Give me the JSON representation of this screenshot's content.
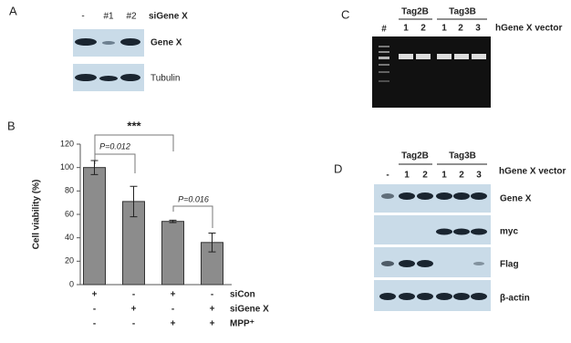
{
  "panels": {
    "A": {
      "label": "A",
      "lanes": [
        "-",
        "#1",
        "#2"
      ],
      "treatment": "siGene X",
      "rows": [
        "Gene X",
        "Tubulin"
      ]
    },
    "C": {
      "label": "C",
      "groups": [
        "Tag2B",
        "Tag3B"
      ],
      "marker": "#",
      "lanes": [
        "1",
        "2",
        "1",
        "2",
        "3"
      ],
      "vector": "hGene X vector"
    },
    "D": {
      "label": "D",
      "groups": [
        "Tag2B",
        "Tag3B"
      ],
      "lanes": [
        "-",
        "1",
        "2",
        "1",
        "2",
        "3"
      ],
      "vector": "hGene X vector",
      "rows": [
        "Gene X",
        "myc",
        "Flag",
        "β-actin"
      ]
    }
  },
  "chart_data": {
    "type": "bar",
    "panel_label": "B",
    "y_label": "Cell viability (%)",
    "categories": [
      null,
      null,
      null,
      null
    ],
    "values": [
      100,
      71,
      54,
      36
    ],
    "errors": [
      6,
      13,
      1,
      8
    ],
    "color": "#8c8c8c",
    "ylim": [
      0,
      120
    ],
    "yticks": [
      0,
      20,
      40,
      60,
      80,
      100,
      120
    ],
    "annotations": [
      "P=0.012",
      "P=0.016",
      "***"
    ],
    "conditions": [
      {
        "name": "siCon",
        "values": [
          "+",
          "-",
          "+",
          "-"
        ]
      },
      {
        "name": "siGene X",
        "values": [
          "-",
          "+",
          "-",
          "+"
        ]
      },
      {
        "name": "MPP⁺",
        "values": [
          "-",
          "-",
          "+",
          "+"
        ]
      }
    ]
  }
}
